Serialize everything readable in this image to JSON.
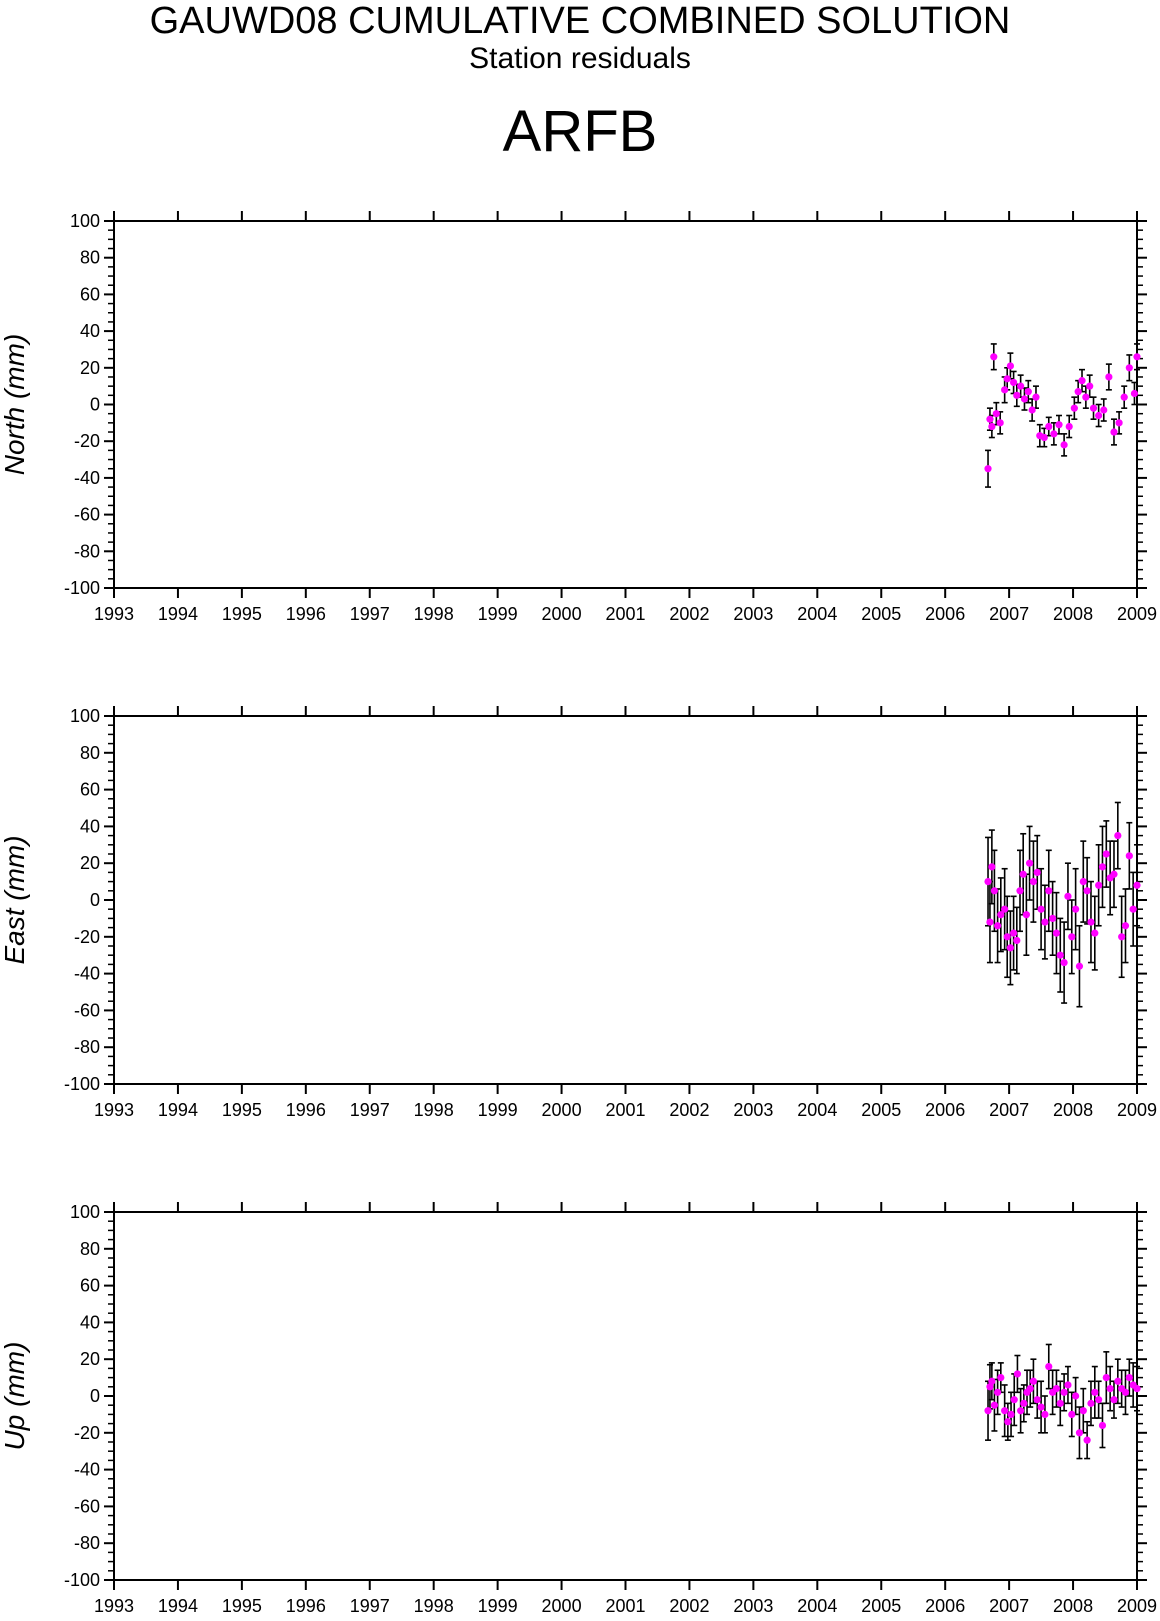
{
  "header": {
    "title": "GAUWD08 CUMULATIVE COMBINED SOLUTION",
    "subtitle": "Station residuals",
    "station": "ARFB"
  },
  "colors": {
    "marker": "#ff00ff",
    "errorbar": "#000000",
    "axis": "#000000"
  },
  "chart_data": [
    {
      "type": "scatter",
      "ylabel": "North (mm)",
      "xlim": [
        1993,
        2009
      ],
      "ylim": [
        -100,
        100
      ],
      "x_ticks": [
        "1993",
        "1994",
        "1995",
        "1996",
        "1997",
        "1998",
        "1999",
        "2000",
        "2001",
        "2002",
        "2003",
        "2004",
        "2005",
        "2006",
        "2007",
        "2008",
        "2009"
      ],
      "y_ticks": [
        "100",
        "80",
        "60",
        "40",
        "20",
        "0",
        "-20",
        "-40",
        "-60",
        "-80",
        "-100"
      ],
      "grid": false,
      "series": [
        {
          "x": [
            2006.67,
            2006.7,
            2006.73,
            2006.76,
            2006.8,
            2006.86,
            2006.93,
            2006.97,
            2007.02,
            2007.07,
            2007.12,
            2007.18,
            2007.24,
            2007.3,
            2007.36,
            2007.42,
            2007.48,
            2007.55,
            2007.62,
            2007.7,
            2007.78,
            2007.86,
            2007.94,
            2008.02,
            2008.08,
            2008.14,
            2008.2,
            2008.26,
            2008.32,
            2008.4,
            2008.48,
            2008.56,
            2008.64,
            2008.72,
            2008.8,
            2008.88,
            2008.96,
            2009.0
          ],
          "y": [
            -35,
            -8,
            -12,
            26,
            -5,
            -10,
            8,
            14,
            21,
            12,
            5,
            10,
            3,
            7,
            -3,
            4,
            -17,
            -18,
            -12,
            -16,
            -11,
            -22,
            -12,
            -2,
            7,
            13,
            4,
            10,
            -2,
            -6,
            -3,
            15,
            -15,
            -10,
            4,
            20,
            6,
            26
          ],
          "err": [
            10,
            6,
            6,
            7,
            6,
            6,
            7,
            6,
            7,
            6,
            6,
            6,
            6,
            6,
            6,
            6,
            6,
            5,
            5,
            6,
            5,
            6,
            6,
            6,
            6,
            6,
            6,
            6,
            6,
            6,
            6,
            7,
            7,
            6,
            6,
            7,
            6,
            7
          ]
        }
      ]
    },
    {
      "type": "scatter",
      "ylabel": "East (mm)",
      "xlim": [
        1993,
        2009
      ],
      "ylim": [
        -100,
        100
      ],
      "x_ticks": [
        "1993",
        "1994",
        "1995",
        "1996",
        "1997",
        "1998",
        "1999",
        "2000",
        "2001",
        "2002",
        "2003",
        "2004",
        "2005",
        "2006",
        "2007",
        "2008",
        "2009"
      ],
      "y_ticks": [
        "100",
        "80",
        "60",
        "40",
        "20",
        "0",
        "-20",
        "-40",
        "-60",
        "-80",
        "-100"
      ],
      "grid": false,
      "series": [
        {
          "x": [
            2006.67,
            2006.7,
            2006.73,
            2006.77,
            2006.82,
            2006.87,
            2006.93,
            2006.97,
            2007.02,
            2007.07,
            2007.12,
            2007.17,
            2007.22,
            2007.27,
            2007.32,
            2007.38,
            2007.44,
            2007.5,
            2007.56,
            2007.62,
            2007.68,
            2007.74,
            2007.8,
            2007.86,
            2007.92,
            2007.98,
            2008.04,
            2008.1,
            2008.16,
            2008.22,
            2008.28,
            2008.34,
            2008.4,
            2008.46,
            2008.52,
            2008.58,
            2008.64,
            2008.7,
            2008.76,
            2008.82,
            2008.88,
            2008.94,
            2009.0
          ],
          "y": [
            10,
            -12,
            18,
            5,
            -14,
            -8,
            -5,
            -20,
            -26,
            -18,
            -22,
            5,
            14,
            -8,
            20,
            10,
            15,
            -5,
            -12,
            5,
            -10,
            -18,
            -30,
            -34,
            2,
            -20,
            -5,
            -36,
            10,
            5,
            -12,
            -18,
            8,
            18,
            25,
            12,
            14,
            35,
            -20,
            -14,
            24,
            -5,
            8
          ],
          "err": [
            24,
            22,
            20,
            22,
            20,
            20,
            22,
            22,
            20,
            20,
            18,
            22,
            22,
            22,
            20,
            22,
            20,
            22,
            20,
            22,
            20,
            22,
            20,
            22,
            18,
            20,
            22,
            22,
            22,
            18,
            22,
            20,
            22,
            22,
            18,
            20,
            18,
            18,
            22,
            20,
            18,
            20,
            22
          ]
        }
      ]
    },
    {
      "type": "scatter",
      "ylabel": "Up (mm)",
      "xlim": [
        1993,
        2009
      ],
      "ylim": [
        -100,
        100
      ],
      "x_ticks": [
        "1993",
        "1994",
        "1995",
        "1996",
        "1997",
        "1998",
        "1999",
        "2000",
        "2001",
        "2002",
        "2003",
        "2004",
        "2005",
        "2006",
        "2007",
        "2008",
        "2009"
      ],
      "y_ticks": [
        "100",
        "80",
        "60",
        "40",
        "20",
        "0",
        "-20",
        "-40",
        "-60",
        "-80",
        "-100"
      ],
      "grid": false,
      "series": [
        {
          "x": [
            2006.67,
            2006.7,
            2006.73,
            2006.77,
            2006.82,
            2006.87,
            2006.93,
            2006.98,
            2007.03,
            2007.08,
            2007.13,
            2007.18,
            2007.23,
            2007.28,
            2007.33,
            2007.38,
            2007.44,
            2007.5,
            2007.56,
            2007.62,
            2007.68,
            2007.74,
            2007.8,
            2007.86,
            2007.92,
            2007.98,
            2008.04,
            2008.1,
            2008.16,
            2008.22,
            2008.28,
            2008.34,
            2008.4,
            2008.46,
            2008.52,
            2008.58,
            2008.64,
            2008.7,
            2008.76,
            2008.82,
            2008.88,
            2008.94,
            2009.0
          ],
          "y": [
            -8,
            5,
            8,
            -5,
            2,
            10,
            -8,
            -14,
            -10,
            -2,
            12,
            -8,
            -4,
            2,
            4,
            8,
            -2,
            -6,
            -10,
            16,
            2,
            4,
            -4,
            2,
            6,
            -10,
            0,
            -20,
            -8,
            -24,
            -4,
            2,
            -2,
            -16,
            10,
            4,
            -2,
            8,
            4,
            2,
            10,
            6,
            4
          ],
          "err": [
            16,
            12,
            10,
            14,
            12,
            8,
            14,
            10,
            12,
            14,
            10,
            12,
            10,
            12,
            10,
            12,
            10,
            14,
            10,
            12,
            12,
            10,
            12,
            10,
            10,
            12,
            10,
            14,
            12,
            10,
            12,
            14,
            10,
            12,
            14,
            12,
            10,
            12,
            10,
            12,
            10,
            12,
            12
          ]
        }
      ]
    }
  ]
}
